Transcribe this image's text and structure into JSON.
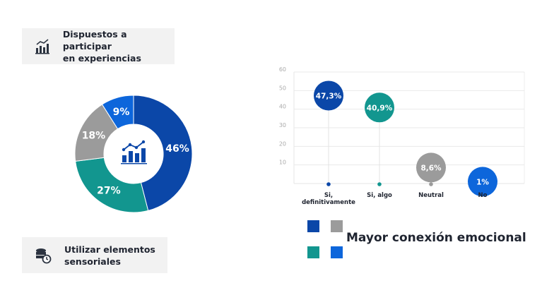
{
  "cards": [
    {
      "label_line1": "Dispuestos a participar",
      "label_line2": "en experiencias",
      "icon": "chart-icon"
    },
    {
      "label_line1": "Utilizar elementos",
      "label_line2": "sensoriales",
      "icon": "database-clock-icon"
    }
  ],
  "chart_data": [
    {
      "type": "pie",
      "variant": "donut",
      "labels": [
        "46%",
        "27%",
        "18%",
        "9%"
      ],
      "values": [
        46,
        27,
        18,
        9
      ],
      "colors": [
        "#0B47A8",
        "#12968F",
        "#9B9B9B",
        "#0D66DB"
      ],
      "center_icon": "chart-icon"
    },
    {
      "type": "scatter",
      "variant": "lollipop",
      "title": "Mayor conexión emocional",
      "categories": [
        "Si, definitivamente",
        "Si, algo",
        "Neutral",
        "No"
      ],
      "category_lines": [
        [
          "Si,",
          "definitivamente"
        ],
        [
          "Si, algo"
        ],
        [
          "Neutral"
        ],
        [
          "No"
        ]
      ],
      "values": [
        47.3,
        40.9,
        8.6,
        1
      ],
      "value_labels": [
        "47,3%",
        "40,9%",
        "8,6%",
        "1%"
      ],
      "colors": [
        "#0B47A8",
        "#12968F",
        "#9B9B9B",
        "#0D66DB"
      ],
      "yticks": [
        10,
        20,
        30,
        40,
        50,
        60
      ],
      "ylim": [
        0,
        60
      ],
      "grid": true,
      "legend": "bottom"
    }
  ]
}
